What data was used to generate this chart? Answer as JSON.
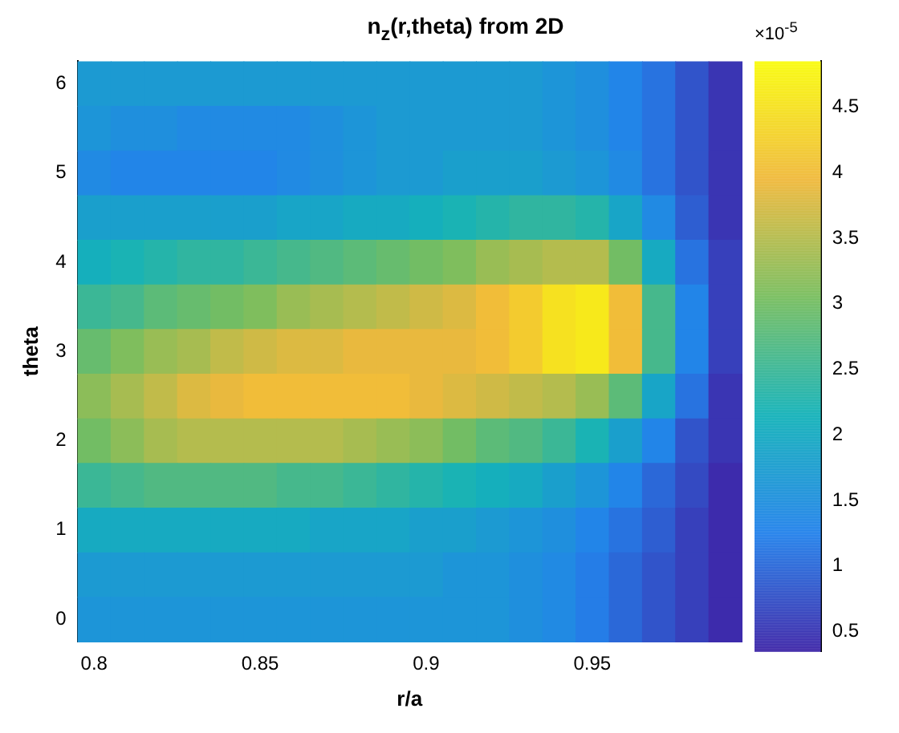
{
  "chart_data": {
    "type": "heatmap",
    "title": "n$_{z}$(r,theta) from 2D",
    "xlabel": "r/a",
    "ylabel": "theta",
    "clabel": "×10$^{-5}$",
    "categories": [
      "0.8",
      null,
      null,
      null,
      null,
      "0.85",
      null,
      null,
      null,
      null,
      "0.9",
      null,
      null,
      null,
      null,
      "0.95",
      null,
      null,
      null,
      null
    ],
    "y_categories": [
      "6",
      null,
      "5",
      null,
      "4",
      null,
      "3",
      null,
      "2",
      null,
      "1",
      null,
      "0"
    ],
    "cells": [
      [
        1.7,
        1.7,
        1.7,
        1.7,
        1.7,
        1.7,
        1.7,
        1.7,
        1.7,
        1.7,
        1.7,
        1.7,
        1.7,
        1.7,
        1.6,
        1.5,
        1.3,
        1.1,
        0.8,
        0.5
      ],
      [
        1.6,
        1.5,
        1.5,
        1.4,
        1.4,
        1.4,
        1.4,
        1.5,
        1.6,
        1.7,
        1.7,
        1.7,
        1.7,
        1.7,
        1.6,
        1.5,
        1.3,
        1.1,
        0.8,
        0.5
      ],
      [
        1.4,
        1.3,
        1.3,
        1.3,
        1.3,
        1.3,
        1.4,
        1.5,
        1.6,
        1.7,
        1.7,
        1.8,
        1.8,
        1.8,
        1.7,
        1.6,
        1.4,
        1.1,
        0.8,
        0.5
      ],
      [
        1.8,
        1.8,
        1.8,
        1.8,
        1.8,
        1.8,
        1.9,
        1.9,
        2.0,
        2.0,
        2.1,
        2.2,
        2.3,
        2.4,
        2.4,
        2.3,
        1.9,
        1.4,
        0.9,
        0.5
      ],
      [
        2.1,
        2.2,
        2.3,
        2.4,
        2.4,
        2.5,
        2.6,
        2.7,
        2.8,
        2.9,
        3.0,
        3.1,
        3.3,
        3.4,
        3.5,
        3.5,
        3.0,
        2.0,
        1.1,
        0.6
      ],
      [
        2.5,
        2.6,
        2.8,
        2.9,
        3.0,
        3.1,
        3.3,
        3.4,
        3.5,
        3.6,
        3.7,
        3.8,
        4.0,
        4.2,
        4.5,
        4.6,
        4.0,
        2.6,
        1.3,
        0.6
      ],
      [
        2.9,
        3.1,
        3.3,
        3.4,
        3.6,
        3.7,
        3.8,
        3.8,
        3.9,
        3.9,
        3.9,
        3.9,
        4.0,
        4.2,
        4.5,
        4.6,
        4.0,
        2.6,
        1.3,
        0.6
      ],
      [
        3.2,
        3.4,
        3.6,
        3.8,
        3.9,
        4.0,
        4.0,
        4.0,
        4.0,
        4.0,
        3.9,
        3.8,
        3.7,
        3.6,
        3.5,
        3.3,
        2.8,
        1.9,
        1.1,
        0.5
      ],
      [
        3.0,
        3.2,
        3.4,
        3.5,
        3.5,
        3.5,
        3.5,
        3.5,
        3.4,
        3.3,
        3.2,
        3.0,
        2.8,
        2.7,
        2.5,
        2.2,
        1.8,
        1.3,
        0.8,
        0.5
      ],
      [
        2.5,
        2.6,
        2.7,
        2.7,
        2.7,
        2.7,
        2.6,
        2.6,
        2.5,
        2.4,
        2.3,
        2.2,
        2.1,
        2.0,
        1.8,
        1.6,
        1.3,
        1.0,
        0.7,
        0.4
      ],
      [
        2.0,
        2.0,
        2.0,
        2.0,
        2.0,
        2.0,
        2.0,
        1.9,
        1.9,
        1.9,
        1.8,
        1.8,
        1.7,
        1.6,
        1.5,
        1.3,
        1.1,
        0.9,
        0.6,
        0.4
      ],
      [
        1.7,
        1.7,
        1.7,
        1.7,
        1.7,
        1.7,
        1.7,
        1.7,
        1.7,
        1.7,
        1.7,
        1.6,
        1.6,
        1.5,
        1.4,
        1.2,
        1.0,
        0.8,
        0.6,
        0.4
      ],
      [
        1.6,
        1.6,
        1.6,
        1.6,
        1.6,
        1.6,
        1.6,
        1.6,
        1.6,
        1.6,
        1.6,
        1.6,
        1.6,
        1.5,
        1.4,
        1.2,
        1.0,
        0.8,
        0.6,
        0.4
      ]
    ],
    "clim": [
      0.35,
      4.85
    ],
    "cticks": [
      0.5,
      1,
      1.5,
      2,
      2.5,
      3,
      3.5,
      4,
      4.5
    ]
  }
}
